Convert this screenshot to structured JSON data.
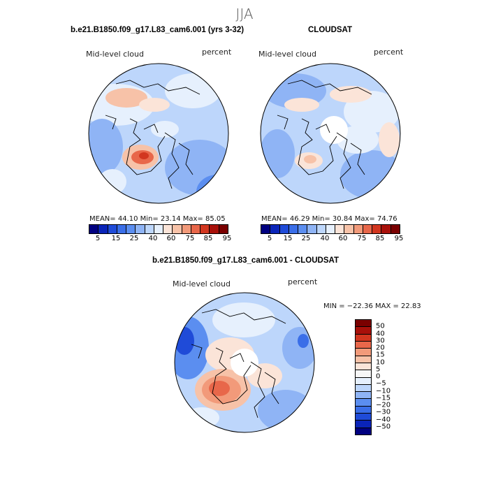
{
  "season": "JJA",
  "colors": {
    "abs_palette": [
      "#000080",
      "#0a24b8",
      "#1f4bd8",
      "#3a6ee8",
      "#5b8ef0",
      "#8fb4f5",
      "#bdd6fb",
      "#e6f0fd",
      "#fbe4d8",
      "#f7c2a8",
      "#f29a7a",
      "#e8674a",
      "#d2361f",
      "#a8100a",
      "#7a0000"
    ],
    "diff_palette": [
      "#000080",
      "#0a24b8",
      "#1f4bd8",
      "#3a6ee8",
      "#5b8ef0",
      "#8fb4f5",
      "#bdd6fb",
      "#e6f0fd",
      "#f6f6f6",
      "#fbe4d8",
      "#f7c2a8",
      "#f29a7a",
      "#e8674a",
      "#d2361f",
      "#a8100a",
      "#7a0000"
    ]
  },
  "panel_left": {
    "title": "b.e21.B1850.f09_g17.L83_cam6.001 (yrs 3-32)",
    "variable": "Mid-level cloud",
    "units": "percent",
    "stats": "MEAN=   44.10   Min=   23.14   Max=   85.05",
    "colorbar_ticks": [
      "5",
      "15",
      "25",
      "40",
      "60",
      "75",
      "85",
      "95"
    ]
  },
  "panel_right": {
    "title": "CLOUDSAT",
    "variable": "Mid-level cloud",
    "units": "percent",
    "stats": "MEAN=   46.29   Min=   30.84   Max=   74.76",
    "colorbar_ticks": [
      "5",
      "15",
      "25",
      "40",
      "60",
      "75",
      "85",
      "95"
    ]
  },
  "panel_diff": {
    "title": "b.e21.B1850.f09_g17.L83_cam6.001 - CLOUDSAT",
    "variable": "Mid-level cloud",
    "units": "percent",
    "minmax": "MIN = −22.36 MAX =  22.83",
    "colorbar_ticks": [
      "50",
      "40",
      "30",
      "20",
      "15",
      "10",
      "5",
      "0",
      "−5",
      "−10",
      "−15",
      "−20",
      "−30",
      "−40",
      "−50"
    ]
  },
  "chart_data": [
    {
      "type": "heatmap",
      "title": "b.e21.B1850.f09_g17.L83_cam6.001 (yrs 3-32)",
      "projection": "north polar stereographic",
      "variable": "Mid-level cloud",
      "units": "percent",
      "mean": 44.1,
      "min": 23.14,
      "max": 85.05,
      "levels": [
        5,
        10,
        15,
        20,
        25,
        30,
        40,
        50,
        60,
        70,
        75,
        80,
        85,
        90,
        95
      ]
    },
    {
      "type": "heatmap",
      "title": "CLOUDSAT",
      "projection": "north polar stereographic",
      "variable": "Mid-level cloud",
      "units": "percent",
      "mean": 46.29,
      "min": 30.84,
      "max": 74.76,
      "levels": [
        5,
        10,
        15,
        20,
        25,
        30,
        40,
        50,
        60,
        70,
        75,
        80,
        85,
        90,
        95
      ]
    },
    {
      "type": "heatmap",
      "title": "b.e21.B1850.f09_g17.L83_cam6.001 - CLOUDSAT",
      "projection": "north polar stereographic",
      "variable": "Mid-level cloud",
      "units": "percent",
      "min": -22.36,
      "max": 22.83,
      "levels": [
        -50,
        -40,
        -30,
        -20,
        -15,
        -10,
        -5,
        0,
        5,
        10,
        15,
        20,
        30,
        40,
        50
      ]
    }
  ]
}
